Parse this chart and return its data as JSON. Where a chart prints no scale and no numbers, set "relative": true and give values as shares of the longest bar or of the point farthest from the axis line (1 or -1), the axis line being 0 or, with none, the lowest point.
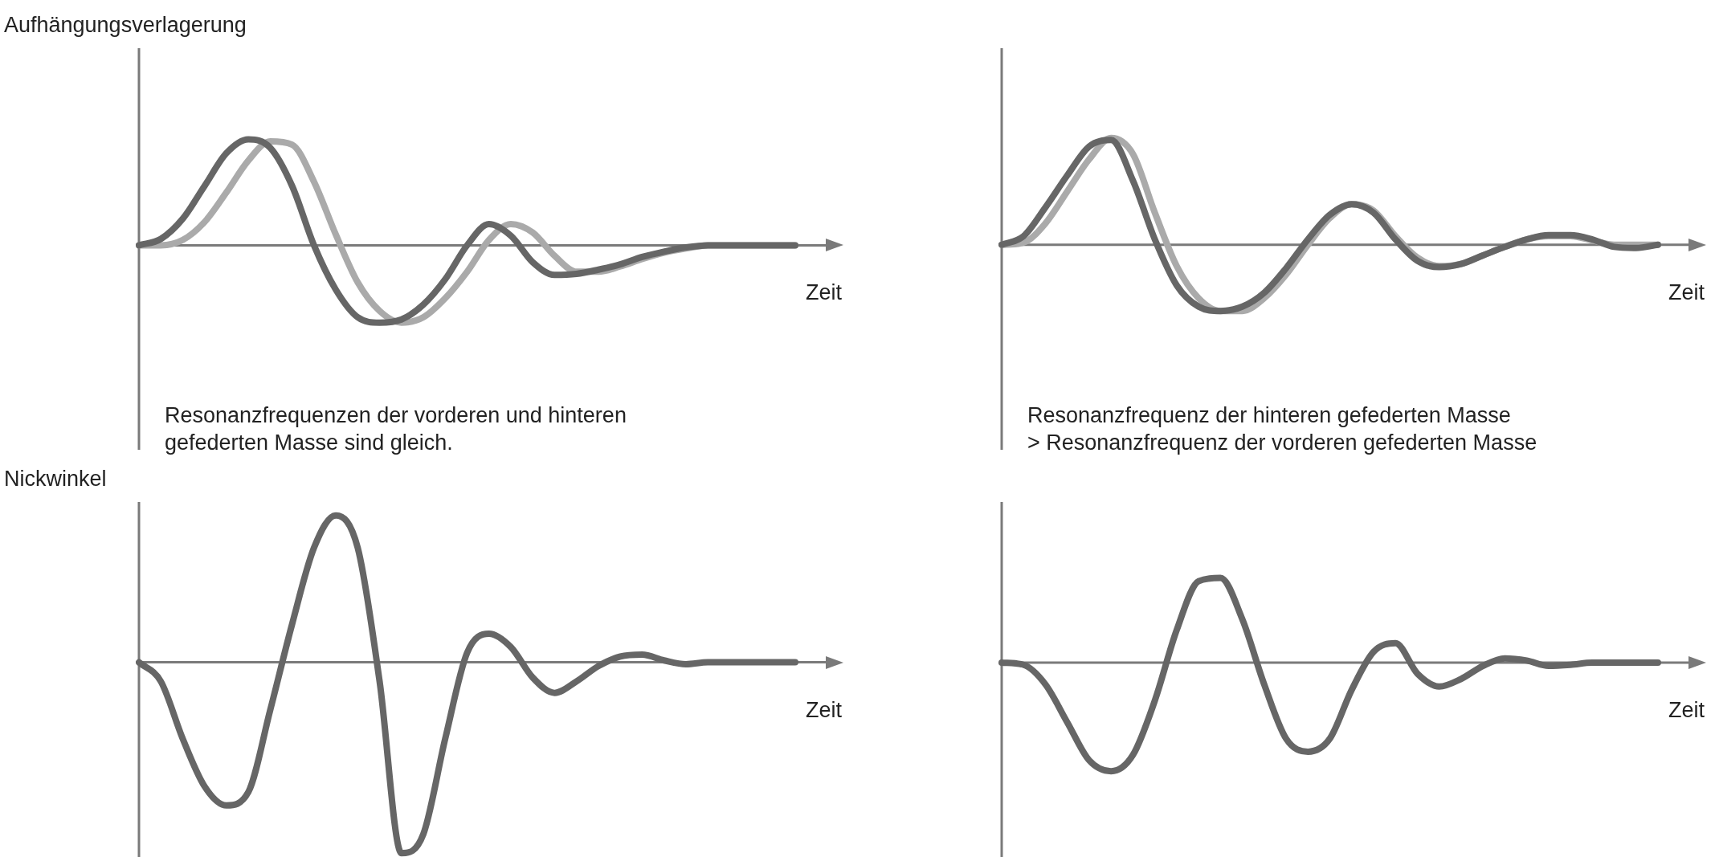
{
  "chart_data": [
    {
      "type": "line",
      "relative": true,
      "ylabel": "Aufhängungsverlagerung",
      "xlabel": "Zeit",
      "annotations": [
        "Resonanzfrequenzen der vorderen und hinteren\ngefederten Masse sind gleich."
      ],
      "categories": [
        null,
        null,
        null,
        null,
        null,
        null,
        null,
        null,
        null,
        null,
        null,
        null,
        null,
        null,
        null,
        null,
        null,
        null,
        null,
        null,
        null,
        null,
        null,
        null,
        null,
        null,
        null,
        null,
        null,
        null,
        null
      ],
      "series": [
        {
          "color": "#666666",
          "values": [
            0,
            0.06,
            0.25,
            0.56,
            0.87,
            1,
            0.92,
            0.56,
            0,
            -0.42,
            -0.68,
            -0.73,
            -0.7,
            -0.56,
            -0.32,
            0,
            0.2,
            0.09,
            -0.16,
            -0.28,
            -0.27,
            -0.23,
            -0.18,
            -0.11,
            -0.06,
            -0.02,
            0,
            0,
            0,
            0,
            0
          ]
        },
        {
          "color": "#aaaaaa",
          "values": [
            0,
            0,
            0.05,
            0.22,
            0.5,
            0.8,
            0.98,
            0.95,
            0.6,
            0.1,
            -0.35,
            -0.62,
            -0.73,
            -0.68,
            -0.5,
            -0.25,
            0.05,
            0.2,
            0.12,
            -0.1,
            -0.25,
            -0.25,
            -0.2,
            -0.13,
            -0.07,
            -0.03,
            0,
            0,
            0,
            0,
            0
          ]
        }
      ]
    },
    {
      "type": "line",
      "relative": true,
      "xlabel": "Zeit",
      "annotations": [
        "Resonanzfrequenz der hinteren gefederten Masse\n> Resonanzfrequenz der vorderen gefederten Masse"
      ],
      "categories": [
        null,
        null,
        null,
        null,
        null,
        null,
        null,
        null,
        null,
        null,
        null,
        null,
        null,
        null,
        null,
        null,
        null,
        null,
        null,
        null,
        null,
        null,
        null,
        null,
        null,
        null,
        null,
        null,
        null,
        null,
        null
      ],
      "series": [
        {
          "color": "#666666",
          "values": [
            0,
            0.08,
            0.35,
            0.65,
            0.92,
            0.98,
            0.6,
            0.05,
            -0.38,
            -0.58,
            -0.62,
            -0.58,
            -0.45,
            -0.22,
            0.05,
            0.28,
            0.38,
            0.3,
            0.05,
            -0.15,
            -0.21,
            -0.18,
            -0.1,
            -0.02,
            0.05,
            0.09,
            0.09,
            0.05,
            -0.02,
            -0.03,
            0
          ]
        },
        {
          "color": "#aaaaaa",
          "values": [
            0,
            0.02,
            0.2,
            0.5,
            0.8,
            1,
            0.85,
            0.3,
            -0.2,
            -0.5,
            -0.62,
            -0.62,
            -0.5,
            -0.28,
            0,
            0.25,
            0.38,
            0.32,
            0.08,
            -0.12,
            -0.2,
            -0.18,
            -0.1,
            -0.02,
            0.05,
            0.08,
            0.08,
            0.04,
            0,
            0,
            0
          ]
        }
      ]
    },
    {
      "type": "line",
      "relative": true,
      "ylabel": "Nickwinkel",
      "xlabel": "Zeit",
      "categories": [
        null,
        null,
        null,
        null,
        null,
        null,
        null,
        null,
        null,
        null,
        null,
        null,
        null,
        null,
        null,
        null,
        null,
        null,
        null,
        null,
        null,
        null,
        null,
        null,
        null,
        null,
        null,
        null,
        null,
        null,
        null
      ],
      "series": [
        {
          "color": "#666666",
          "values": [
            0,
            -0.1,
            -0.4,
            -0.65,
            -0.75,
            -0.68,
            -0.25,
            0.2,
            0.6,
            0.77,
            0.6,
            -0.1,
            -1,
            -0.9,
            -0.4,
            0.05,
            0.15,
            0.08,
            -0.08,
            -0.16,
            -0.1,
            -0.02,
            0.03,
            0.04,
            0.01,
            -0.01,
            0,
            0,
            0,
            0,
            0
          ]
        }
      ]
    },
    {
      "type": "line",
      "relative": true,
      "xlabel": "Zeit",
      "categories": [
        null,
        null,
        null,
        null,
        null,
        null,
        null,
        null,
        null,
        null,
        null,
        null,
        null,
        null,
        null,
        null,
        null,
        null,
        null,
        null,
        null,
        null,
        null,
        null,
        null,
        null,
        null,
        null,
        null,
        null,
        null
      ],
      "series": [
        {
          "color": "#666666",
          "values": [
            0,
            -0.02,
            -0.2,
            -0.55,
            -0.9,
            -1,
            -0.85,
            -0.35,
            0.3,
            0.75,
            0.78,
            0.4,
            -0.2,
            -0.7,
            -0.82,
            -0.7,
            -0.25,
            0.1,
            0.18,
            -0.1,
            -0.22,
            -0.15,
            -0.03,
            0.04,
            0.02,
            -0.03,
            -0.02,
            0,
            0,
            0,
            0
          ]
        }
      ]
    }
  ]
}
